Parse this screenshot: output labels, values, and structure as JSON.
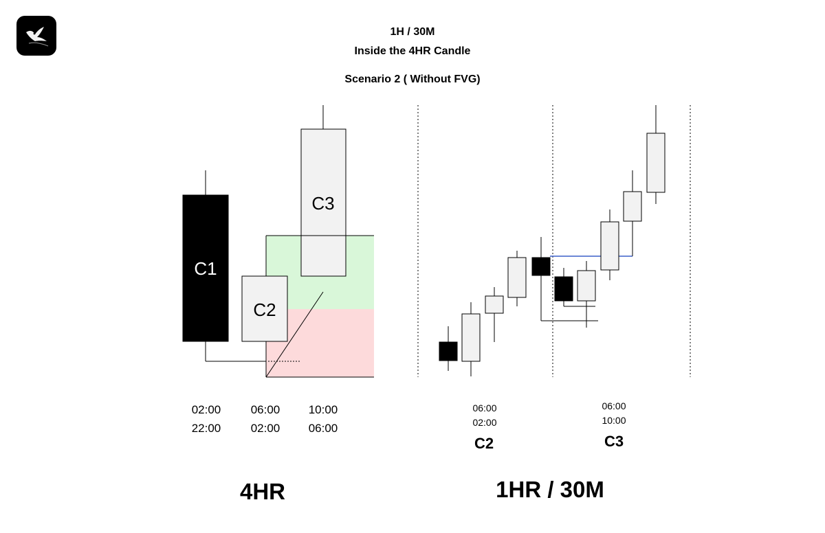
{
  "header": {
    "title_line1": "1H / 30M",
    "title_line2": "Inside the 4HR Candle",
    "subtitle": "Scenario 2 ( Without FVG)"
  },
  "logo": {
    "icon": "bird-icon"
  },
  "left_panel": {
    "label": "4HR",
    "candles": [
      {
        "label": "C1",
        "direction": "bearish",
        "fill": "#000000",
        "text_color": "#ffffff",
        "time_top": "02:00",
        "time_bottom": "22:00"
      },
      {
        "label": "C2",
        "direction": "bullish",
        "fill": "#f2f2f2",
        "text_color": "#000000",
        "time_top": "06:00",
        "time_bottom": "02:00"
      },
      {
        "label": "C3",
        "direction": "bullish",
        "fill": "#f2f2f2",
        "text_color": "#000000",
        "time_top": "10:00",
        "time_bottom": "06:00"
      }
    ],
    "zones": {
      "upper_color": "#d9f7d9",
      "lower_color": "#fddadb"
    }
  },
  "right_panel": {
    "label": "1HR / 30M",
    "section_c2": {
      "label": "C2",
      "time_top": "06:00",
      "time_bottom": "02:00"
    },
    "section_c3": {
      "label": "C3",
      "time_top": "06:00",
      "time_bottom": "10:00"
    },
    "level_line_color": "#3a5fc8"
  }
}
